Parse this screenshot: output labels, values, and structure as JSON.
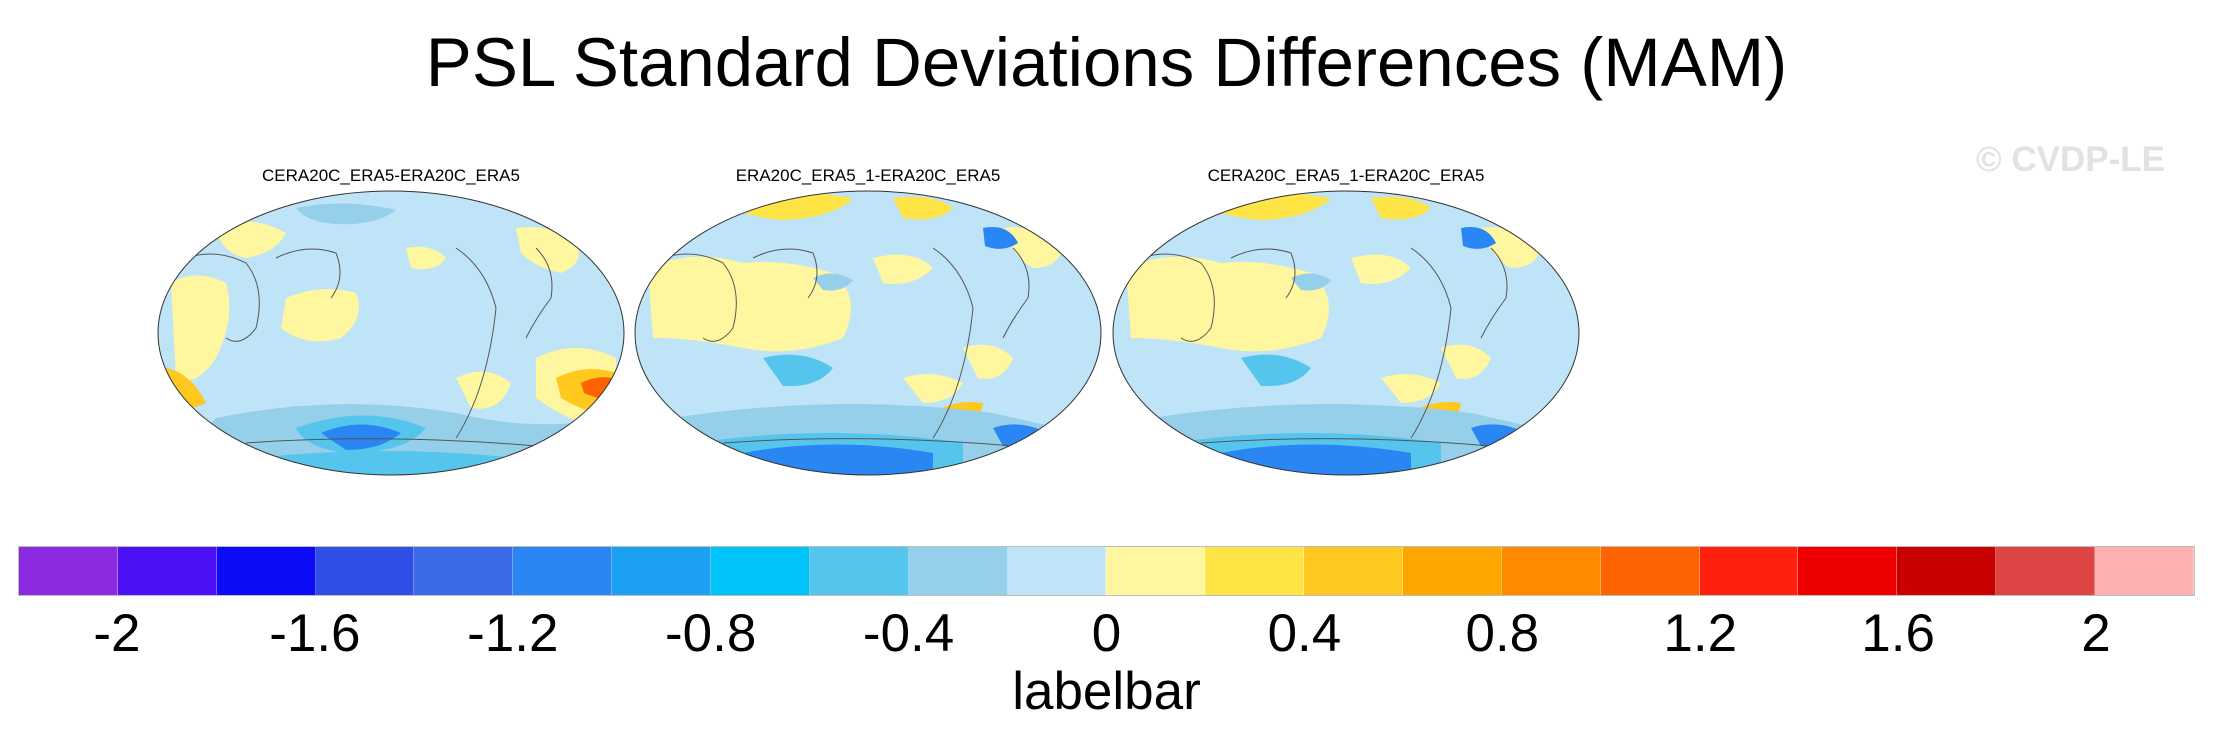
{
  "figure": {
    "title": "PSL Standard Deviations Differences (MAM)",
    "watermark": "© CVDP-LE",
    "panels": [
      {
        "title": "CERA20C_ERA5-ERA20C_ERA5",
        "variant": "a"
      },
      {
        "title": "ERA20C_ERA5_1-ERA20C_ERA5",
        "variant": "b"
      },
      {
        "title": "CERA20C_ERA5_1-ERA20C_ERA5",
        "variant": "b"
      }
    ]
  },
  "colorbar": {
    "title": "labelbar",
    "colors": [
      "#8a2be2",
      "#4b10f5",
      "#0c0cf7",
      "#2f4ee6",
      "#3c6be8",
      "#2a86f2",
      "#1ca0f2",
      "#00c4f8",
      "#55c5ee",
      "#96cfea",
      "#bfe3f7",
      "#fff7a0",
      "#ffe446",
      "#ffc81e",
      "#ffa500",
      "#ff8a00",
      "#ff6200",
      "#ff2010",
      "#ee0000",
      "#c80000",
      "#dd4444",
      "#ffb0b0"
    ],
    "tick_labels": [
      "-2",
      "-1.6",
      "-1.2",
      "-0.8",
      "-0.4",
      "0",
      "0.4",
      "0.8",
      "1.2",
      "1.6",
      "2"
    ],
    "tick_positions": [
      1,
      3,
      5,
      7,
      9,
      11,
      13,
      15,
      17,
      19,
      21
    ]
  }
}
